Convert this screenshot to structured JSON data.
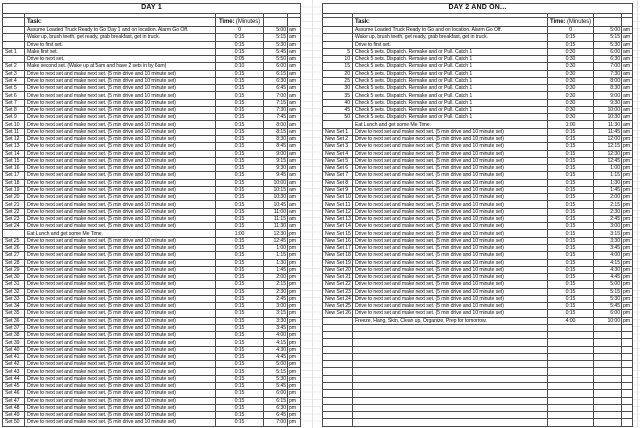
{
  "tables": [
    {
      "title": "DAY 1",
      "header": {
        "task": "Task:",
        "time_bold": "Time:",
        "time_rest": " (Minutes)"
      },
      "rows": [
        [
          "",
          "Assume Loaded Truck Ready to Go Day 1 and on location.  Alarm Go Off.",
          "0",
          "5:00",
          "am"
        ],
        [
          "",
          "Wake up, brush teeth, get ready, grab breakfast, get in truck.",
          "0:15",
          "5:15",
          "am"
        ],
        [
          "",
          "Drive to first set.",
          "0:15",
          "5:30",
          "am"
        ],
        [
          "Set 1",
          "Make first set.",
          "0:15",
          "5:45",
          "am"
        ],
        [
          "",
          "Drive to next set.",
          "0:05",
          "5:50",
          "am"
        ],
        [
          "Set 2",
          "Make second set.  (Wake up at 5am and have 2 sets in by 6am)",
          "0:10",
          "6:00",
          "am"
        ],
        [
          "Set 3",
          "Drive to next set and make next set.  (5 min drive and 10 minute set)",
          "0:15",
          "6:15",
          "am"
        ],
        [
          "Set 4",
          "Drive to next set and make next set.  (5 min drive and 10 minute set)",
          "0:15",
          "6:30",
          "am"
        ],
        [
          "Set 5",
          "Drive to next set and make next set.  (5 min drive and 10 minute set)",
          "0:15",
          "6:45",
          "am"
        ],
        [
          "Set 6",
          "Drive to next set and make next set.  (5 min drive and 10 minute set)",
          "0:15",
          "7:00",
          "am"
        ],
        [
          "Set 7",
          "Drive to next set and make next set.  (5 min drive and 10 minute set)",
          "0:15",
          "7:15",
          "am"
        ],
        [
          "Set 8",
          "Drive to next set and make next set.  (5 min drive and 10 minute set)",
          "0:15",
          "7:30",
          "am"
        ],
        [
          "Set 9",
          "Drive to next set and make next set.  (5 min drive and 10 minute set)",
          "0:15",
          "7:45",
          "am"
        ],
        [
          "Set 10",
          "Drive to next set and make next set.  (5 min drive and 10 minute set)",
          "0:15",
          "8:00",
          "am"
        ],
        [
          "Set 11",
          "Drive to next set and make next set.  (5 min drive and 10 minute set)",
          "0:15",
          "8:15",
          "am"
        ],
        [
          "Set 12",
          "Drive to next set and make next set.  (5 min drive and 10 minute set)",
          "0:15",
          "8:30",
          "am"
        ],
        [
          "Set 13",
          "Drive to next set and make next set.  (5 min drive and 10 minute set)",
          "0:15",
          "8:45",
          "am"
        ],
        [
          "Set 14",
          "Drive to next set and make next set.  (5 min drive and 10 minute set)",
          "0:15",
          "9:00",
          "am"
        ],
        [
          "Set 15",
          "Drive to next set and make next set.  (5 min drive and 10 minute set)",
          "0:15",
          "9:15",
          "am"
        ],
        [
          "Set 16",
          "Drive to next set and make next set.  (5 min drive and 10 minute set)",
          "0:15",
          "9:30",
          "am"
        ],
        [
          "Set 17",
          "Drive to next set and make next set.  (5 min drive and 10 minute set)",
          "0:15",
          "9:45",
          "am"
        ],
        [
          "Set 18",
          "Drive to next set and make next set.  (5 min drive and 10 minute set)",
          "0:15",
          "10:00",
          "am"
        ],
        [
          "Set 19",
          "Drive to next set and make next set.  (5 min drive and 10 minute set)",
          "0:15",
          "10:15",
          "am"
        ],
        [
          "Set 20",
          "Drive to next set and make next set.  (5 min drive and 10 minute set)",
          "0:15",
          "10:30",
          "am"
        ],
        [
          "Set 21",
          "Drive to next set and make next set.  (5 min drive and 10 minute set)",
          "0:15",
          "10:45",
          "am"
        ],
        [
          "Set 22",
          "Drive to next set and make next set.  (5 min drive and 10 minute set)",
          "0:15",
          "11:00",
          "am"
        ],
        [
          "Set 23",
          "Drive to next set and make next set.  (5 min drive and 10 minute set)",
          "0:15",
          "11:15",
          "am"
        ],
        [
          "Set 24",
          "Drive to next set and make next set.  (5 min drive and 10 minute set)",
          "0:15",
          "11:30",
          "am"
        ],
        [
          "",
          "Eat Lunch and get some Me Time.",
          "1:00",
          "12:30",
          "pm"
        ],
        [
          "Set 25",
          "Drive to next set and make next set.  (5 min drive and 10 minute set)",
          "0:15",
          "12:45",
          "pm"
        ],
        [
          "Set 26",
          "Drive to next set and make next set.  (5 min drive and 10 minute set)",
          "0:15",
          "1:00",
          "pm"
        ],
        [
          "Set 27",
          "Drive to next set and make next set.  (5 min drive and 10 minute set)",
          "0:15",
          "1:15",
          "pm"
        ],
        [
          "Set 28",
          "Drive to next set and make next set.  (5 min drive and 10 minute set)",
          "0:15",
          "1:30",
          "pm"
        ],
        [
          "Set 29",
          "Drive to next set and make next set.  (5 min drive and 10 minute set)",
          "0:15",
          "1:45",
          "pm"
        ],
        [
          "Set 30",
          "Drive to next set and make next set.  (5 min drive and 10 minute set)",
          "0:15",
          "2:00",
          "pm"
        ],
        [
          "Set 31",
          "Drive to next set and make next set.  (5 min drive and 10 minute set)",
          "0:15",
          "2:15",
          "pm"
        ],
        [
          "Set 32",
          "Drive to next set and make next set.  (5 min drive and 10 minute set)",
          "0:15",
          "2:30",
          "pm"
        ],
        [
          "Set 33",
          "Drive to next set and make next set.  (5 min drive and 10 minute set)",
          "0:15",
          "2:45",
          "pm"
        ],
        [
          "Set 34",
          "Drive to next set and make next set.  (5 min drive and 10 minute set)",
          "0:15",
          "3:00",
          "pm"
        ],
        [
          "Set 35",
          "Drive to next set and make next set.  (5 min drive and 10 minute set)",
          "0:15",
          "3:15",
          "pm"
        ],
        [
          "Set 36",
          "Drive to next set and make next set.  (5 min drive and 10 minute set)",
          "0:15",
          "3:30",
          "pm"
        ],
        [
          "Set 37",
          "Drive to next set and make next set.  (5 min drive and 10 minute set)",
          "0:15",
          "3:45",
          "pm"
        ],
        [
          "Set 38",
          "Drive to next set and make next set.  (5 min drive and 10 minute set)",
          "0:15",
          "4:00",
          "pm"
        ],
        [
          "Set 39",
          "Drive to next set and make next set.  (5 min drive and 10 minute set)",
          "0:15",
          "4:15",
          "pm"
        ],
        [
          "Set 40",
          "Drive to next set and make next set.  (5 min drive and 10 minute set)",
          "0:15",
          "4:30",
          "pm"
        ],
        [
          "Set 41",
          "Drive to next set and make next set.  (5 min drive and 10 minute set)",
          "0:15",
          "4:45",
          "pm"
        ],
        [
          "Set 42",
          "Drive to next set and make next set.  (5 min drive and 10 minute set)",
          "0:15",
          "5:00",
          "pm"
        ],
        [
          "Set 43",
          "Drive to next set and make next set.  (5 min drive and 10 minute set)",
          "0:15",
          "5:15",
          "pm"
        ],
        [
          "Set 44",
          "Drive to next set and make next set.  (5 min drive and 10 minute set)",
          "0:15",
          "5:30",
          "pm"
        ],
        [
          "Set 45",
          "Drive to next set and make next set.  (5 min drive and 10 minute set)",
          "0:15",
          "5:45",
          "pm"
        ],
        [
          "Set 46",
          "Drive to next set and make next set.  (5 min drive and 10 minute set)",
          "0:15",
          "6:00",
          "pm"
        ],
        [
          "Set 47",
          "Drive to next set and make next set.  (5 min drive and 10 minute set)",
          "0:15",
          "6:15",
          "pm"
        ],
        [
          "Set 48",
          "Drive to next set and make next set.  (5 min drive and 10 minute set)",
          "0:15",
          "6:30",
          "pm"
        ],
        [
          "Set 49",
          "Drive to next set and make next set.  (5 min drive and 10 minute set)",
          "0:15",
          "6:45",
          "pm"
        ],
        [
          "Set 50",
          "Drive to next set and make next set.  (5 min drive and 10 minute set)",
          "0:15",
          "7:00",
          "pm"
        ]
      ],
      "empty_rows": 0
    },
    {
      "title": "DAY 2 AND ON...",
      "header": {
        "task": "Task:",
        "time_bold": "Time:",
        "time_rest": " (Minutes)"
      },
      "rows": [
        [
          "",
          "Assume Loaded Truck Ready to Go and on location.  Alarm Go Off.",
          "0",
          "5:00",
          "am"
        ],
        [
          "",
          "Wake up, brush teeth, get ready, grab breakfast, get in truck.",
          "0:15",
          "5:15",
          "am"
        ],
        [
          "",
          "Drive to first set.",
          "0:15",
          "5:30",
          "am"
        ],
        [
          "5",
          "Check 5 sets.  Dispatch.  Remake and or Pull.  Catch 1",
          "0:30",
          "6:00",
          "am"
        ],
        [
          "10",
          "Check 5 sets.  Dispatch.  Remake and or Pull.  Catch 1",
          "0:30",
          "6:30",
          "am"
        ],
        [
          "15",
          "Check 5 sets.  Dispatch.  Remake and or Pull.  Catch 1",
          "0:30",
          "7:00",
          "am"
        ],
        [
          "20",
          "Check 5 sets.  Dispatch.  Remake and or Pull.  Catch 1",
          "0:30",
          "7:30",
          "am"
        ],
        [
          "25",
          "Check 5 sets.  Dispatch.  Remake and or Pull.  Catch 1",
          "0:30",
          "8:00",
          "am"
        ],
        [
          "30",
          "Check 5 sets.  Dispatch.  Remake and or Pull.  Catch 1",
          "0:30",
          "8:30",
          "am"
        ],
        [
          "35",
          "Check 5 sets.  Dispatch.  Remake and or Pull.  Catch 1",
          "0:30",
          "9:00",
          "am"
        ],
        [
          "40",
          "Check 5 sets.  Dispatch.  Remake and or Pull.  Catch 1",
          "0:30",
          "9:30",
          "am"
        ],
        [
          "45",
          "Check 5 sets.  Dispatch.  Remake and or Pull.  Catch 1",
          "0:30",
          "10:00",
          "am"
        ],
        [
          "50",
          "Check 5 sets.  Dispatch.  Remake and or Pull.  Catch 1",
          "0:30",
          "10:30",
          "am"
        ],
        [
          "",
          "Eat Lunch and get some Me Time.",
          "1:00",
          "11:30",
          "am"
        ],
        [
          "New Set 1",
          "Drive to next set and make next set.  (5 min drive and 10 minute set)",
          "0:15",
          "11:45",
          "am"
        ],
        [
          "New Set 2",
          "Drive to next set and make next set.  (5 min drive and 10 minute set)",
          "0:15",
          "12:00",
          "pm"
        ],
        [
          "New Set 3",
          "Drive to next set and make next set.  (5 min drive and 10 minute set)",
          "0:15",
          "12:15",
          "pm"
        ],
        [
          "New Set 4",
          "Drive to next set and make next set.  (5 min drive and 10 minute set)",
          "0:15",
          "12:30",
          "pm"
        ],
        [
          "New Set 5",
          "Drive to next set and make next set.  (5 min drive and 10 minute set)",
          "0:15",
          "12:45",
          "pm"
        ],
        [
          "New Set 6",
          "Drive to next set and make next set.  (5 min drive and 10 minute set)",
          "0:15",
          "1:00",
          "pm"
        ],
        [
          "New Set 7",
          "Drive to next set and make next set.  (5 min drive and 10 minute set)",
          "0:15",
          "1:15",
          "pm"
        ],
        [
          "New Set 8",
          "Drive to next set and make next set.  (5 min drive and 10 minute set)",
          "0:15",
          "1:30",
          "pm"
        ],
        [
          "New Set 9",
          "Drive to next set and make next set.  (5 min drive and 10 minute set)",
          "0:15",
          "1:45",
          "pm"
        ],
        [
          "New Set 10",
          "Drive to next set and make next set.  (5 min drive and 10 minute set)",
          "0:15",
          "2:00",
          "pm"
        ],
        [
          "New Set 11",
          "Drive to next set and make next set.  (5 min drive and 10 minute set)",
          "0:15",
          "2:15",
          "pm"
        ],
        [
          "New Set 12",
          "Drive to next set and make next set.  (5 min drive and 10 minute set)",
          "0:15",
          "2:30",
          "pm"
        ],
        [
          "New Set 13",
          "Drive to next set and make next set.  (5 min drive and 10 minute set)",
          "0:15",
          "2:45",
          "pm"
        ],
        [
          "New Set 14",
          "Drive to next set and make next set.  (5 min drive and 10 minute set)",
          "0:15",
          "3:00",
          "pm"
        ],
        [
          "New Set 15",
          "Drive to next set and make next set.  (5 min drive and 10 minute set)",
          "0:15",
          "3:15",
          "pm"
        ],
        [
          "New Set 16",
          "Drive to next set and make next set.  (5 min drive and 10 minute set)",
          "0:15",
          "3:30",
          "pm"
        ],
        [
          "New Set 17",
          "Drive to next set and make next set.  (5 min drive and 10 minute set)",
          "0:15",
          "3:45",
          "pm"
        ],
        [
          "New Set 18",
          "Drive to next set and make next set.  (5 min drive and 10 minute set)",
          "0:15",
          "4:00",
          "pm"
        ],
        [
          "New Set 19",
          "Drive to next set and make next set.  (5 min drive and 10 minute set)",
          "0:15",
          "4:15",
          "pm"
        ],
        [
          "New Set 20",
          "Drive to next set and make next set.  (5 min drive and 10 minute set)",
          "0:15",
          "4:30",
          "pm"
        ],
        [
          "New Set 21",
          "Drive to next set and make next set.  (5 min drive and 10 minute set)",
          "0:15",
          "4:45",
          "pm"
        ],
        [
          "New Set 22",
          "Drive to next set and make next set.  (5 min drive and 10 minute set)",
          "0:15",
          "5:00",
          "pm"
        ],
        [
          "New Set 23",
          "Drive to next set and make next set.  (5 min drive and 10 minute set)",
          "0:15",
          "5:15",
          "pm"
        ],
        [
          "New Set 24",
          "Drive to next set and make next set.  (5 min drive and 10 minute set)",
          "0:15",
          "5:30",
          "pm"
        ],
        [
          "New Set 25",
          "Drive to next set and make next set.  (5 min drive and 10 minute set)",
          "0:15",
          "5:45",
          "pm"
        ],
        [
          "New Set 26",
          "Drive to next set and make next set.  (5 min drive and 10 minute set)",
          "0:15",
          "6:00",
          "pm"
        ],
        [
          "",
          "Freeze, Hang, Skin, Clean up, Organize, Prep for tomorrow.",
          "4:00",
          "10:00",
          "pm"
        ]
      ],
      "empty_rows": 14
    }
  ]
}
